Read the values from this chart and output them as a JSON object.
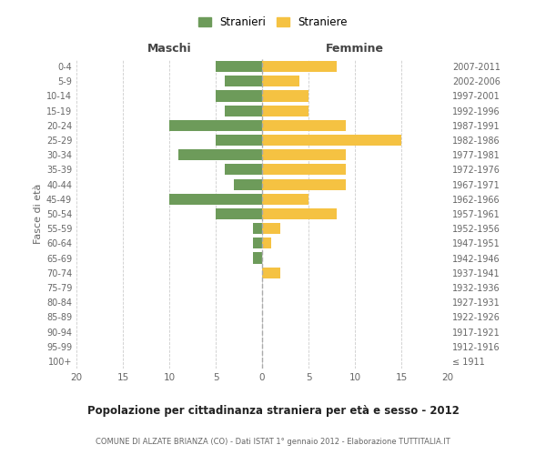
{
  "age_groups": [
    "100+",
    "95-99",
    "90-94",
    "85-89",
    "80-84",
    "75-79",
    "70-74",
    "65-69",
    "60-64",
    "55-59",
    "50-54",
    "45-49",
    "40-44",
    "35-39",
    "30-34",
    "25-29",
    "20-24",
    "15-19",
    "10-14",
    "5-9",
    "0-4"
  ],
  "birth_years": [
    "≤ 1911",
    "1912-1916",
    "1917-1921",
    "1922-1926",
    "1927-1931",
    "1932-1936",
    "1937-1941",
    "1942-1946",
    "1947-1951",
    "1952-1956",
    "1957-1961",
    "1962-1966",
    "1967-1971",
    "1972-1976",
    "1977-1981",
    "1982-1986",
    "1987-1991",
    "1992-1996",
    "1997-2001",
    "2002-2006",
    "2007-2011"
  ],
  "maschi": [
    0,
    0,
    0,
    0,
    0,
    0,
    0,
    1,
    1,
    1,
    5,
    10,
    3,
    4,
    9,
    5,
    10,
    4,
    5,
    4,
    5
  ],
  "femmine": [
    0,
    0,
    0,
    0,
    0,
    0,
    2,
    0,
    1,
    2,
    8,
    5,
    9,
    9,
    9,
    15,
    9,
    5,
    5,
    4,
    8
  ],
  "maschi_color": "#6d9b5a",
  "femmine_color": "#f5c242",
  "background_color": "#ffffff",
  "grid_color": "#cccccc",
  "title": "Popolazione per cittadinanza straniera per età e sesso - 2012",
  "subtitle": "COMUNE DI ALZATE BRIANZA (CO) - Dati ISTAT 1° gennaio 2012 - Elaborazione TUTTITALIA.IT",
  "xlabel_left": "Maschi",
  "xlabel_right": "Femmine",
  "ylabel_left": "Fasce di età",
  "legend_maschi": "Stranieri",
  "legend_femmine": "Straniere",
  "xlim": 20,
  "bar_height": 0.75
}
